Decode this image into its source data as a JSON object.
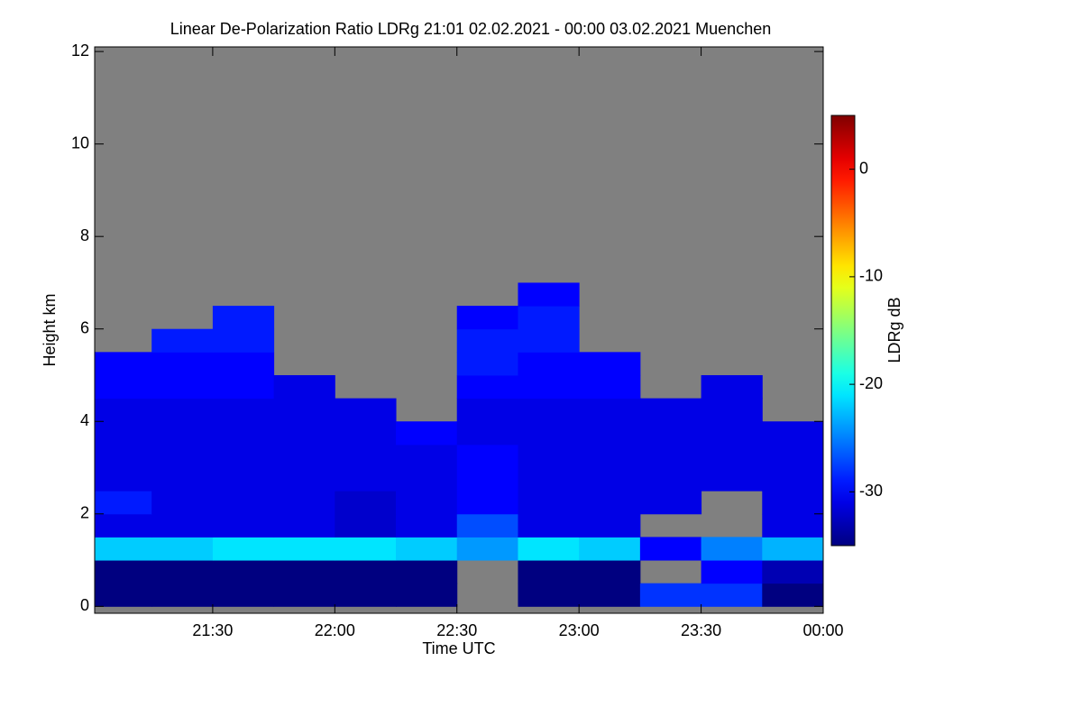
{
  "chart_data": {
    "type": "heatmap",
    "title": "Linear De-Polarization Ratio LDRg   21:01 02.02.2021 - 00:00 03.02.2021 Muenchen",
    "x_label": "Time UTC",
    "y_label": "Height km",
    "xlim": [
      21.0167,
      24
    ],
    "xticks": [
      {
        "value": 21.5,
        "label": "21:30"
      },
      {
        "value": 22,
        "label": "22:00"
      },
      {
        "value": 22.5,
        "label": "22:30"
      },
      {
        "value": 23,
        "label": "23:00"
      },
      {
        "value": 23.5,
        "label": "23:30"
      },
      {
        "value": 24,
        "label": "00:00"
      }
    ],
    "ylim": [
      -0.15,
      12.1
    ],
    "yticks": [
      0,
      2,
      4,
      6,
      8,
      10,
      12
    ],
    "xbins": [
      21,
      21.25,
      21.5,
      21.75,
      22,
      22.25,
      22.5,
      22.75,
      23,
      23.25,
      23.5,
      23.75,
      24
    ],
    "ybins": [
      0,
      0.5,
      1,
      1.5,
      2,
      2.5,
      3,
      3.5,
      4,
      4.5,
      5,
      5.5,
      6,
      6.5,
      7
    ],
    "z": [
      [
        -35,
        -35,
        -35,
        -35,
        -35,
        -35,
        null,
        -35,
        -35,
        -28,
        -28,
        -35
      ],
      [
        -35,
        -35,
        -35,
        -35,
        -35,
        -35,
        null,
        -35,
        -35,
        null,
        -30,
        -33
      ],
      [
        -22,
        -22,
        -21,
        -21,
        -21,
        -22,
        -24,
        -21,
        -22,
        -30,
        -25,
        -23
      ],
      [
        -31,
        -31,
        -31,
        -31,
        -32,
        -31,
        -27,
        -31,
        -31,
        null,
        null,
        -31
      ],
      [
        -29,
        -31,
        -31,
        -31,
        -32,
        -31,
        -30,
        -31,
        -31,
        -31,
        null,
        -31
      ],
      [
        -31,
        -31,
        -31,
        -31,
        -31,
        -31,
        -30,
        -31,
        -31,
        -31,
        -31,
        -31
      ],
      [
        -31,
        -31,
        -31,
        -31,
        -31,
        -31,
        -30,
        -31,
        -31,
        -31,
        -31,
        -31
      ],
      [
        -31,
        -31,
        -31,
        -31,
        -31,
        -30,
        -31,
        -31,
        -31,
        -31,
        -31,
        -31
      ],
      [
        -31,
        -31,
        -31,
        -31,
        -31,
        null,
        -31,
        -31,
        -31,
        -31,
        -31,
        null
      ],
      [
        -30,
        -30,
        -30,
        -31,
        null,
        null,
        -30,
        -30,
        -30,
        null,
        -31,
        null
      ],
      [
        -30,
        -30,
        -30,
        null,
        null,
        null,
        -29,
        -30,
        -30,
        null,
        null,
        null
      ],
      [
        null,
        -29,
        -29,
        null,
        null,
        null,
        -29,
        -29,
        null,
        null,
        null,
        null
      ],
      [
        null,
        null,
        -29,
        null,
        null,
        null,
        -30,
        -29,
        null,
        null,
        null,
        null
      ],
      [
        null,
        null,
        null,
        null,
        null,
        null,
        null,
        -30,
        null,
        null,
        null,
        null
      ]
    ],
    "missing_color": "#808080",
    "colormap": "jet",
    "colorbar": {
      "label": "LDRg dB",
      "lim": [
        -35,
        5
      ],
      "ticks": [
        0,
        -10,
        -20,
        -30
      ]
    }
  }
}
